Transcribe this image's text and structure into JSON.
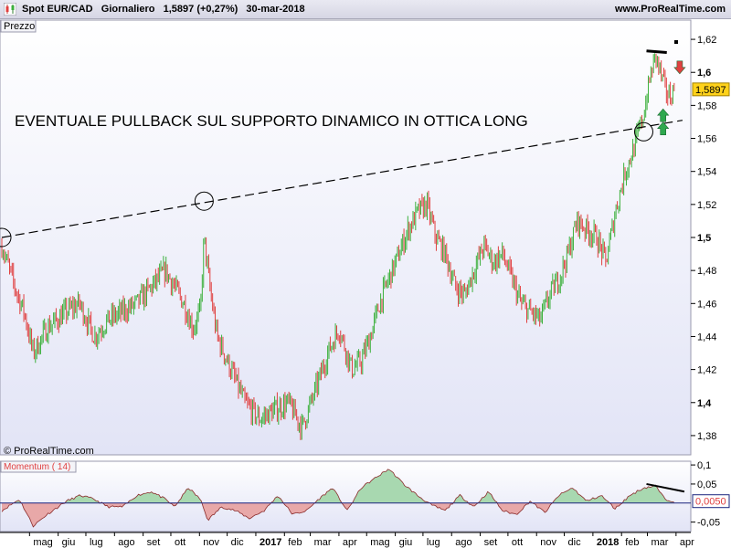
{
  "header": {
    "title": "Spot EUR/CAD   Giornaliero   1,5897 (+0,27%)   30-mar-2018",
    "website": "www.ProRealTime.com"
  },
  "colors": {
    "up_candle": "#3cb03c",
    "down_candle": "#e04040",
    "momentum_fill_pos": "#a8d8b0",
    "momentum_fill_neg": "#e8a8a8",
    "zero_line": "#1a237e",
    "price_label_bg": "#ffd21a",
    "pane_bg_top": "#ffffff",
    "pane_bg_bottom": "#e2e4f6"
  },
  "chart_data": [
    {
      "type": "line",
      "panel": "price",
      "panel_label": "Prezzo",
      "watermark": "© ProRealTime.com",
      "annotation": "EVENTUALE PULLBACK SUL SUPPORTO DINAMICO IN OTTICA LONG",
      "y_ticks": [
        "1,62",
        "1,6",
        "1,58",
        "1,56",
        "1,54",
        "1,52",
        "1,5",
        "1,48",
        "1,46",
        "1,44",
        "1,42",
        "1,4",
        "1,38"
      ],
      "y_tick_values": [
        1.62,
        1.6,
        1.58,
        1.56,
        1.54,
        1.52,
        1.5,
        1.48,
        1.46,
        1.44,
        1.42,
        1.4,
        1.38
      ],
      "bold_ticks": [
        "1,6",
        "1,5",
        "1,4"
      ],
      "ylim": [
        1.37,
        1.63
      ],
      "last_price_label": "1,5897",
      "last_price": 1.5897,
      "x_ticks": [
        "mag",
        "giu",
        "lug",
        "ago",
        "set",
        "ott",
        "nov",
        "dic",
        "2017",
        "feb",
        "mar",
        "apr",
        "mag",
        "giu",
        "lug",
        "ago",
        "set",
        "ott",
        "nov",
        "dic",
        "2018",
        "feb",
        "mar",
        "apr"
      ],
      "bold_x_ticks": [
        "2017",
        "2018"
      ],
      "x_range": [
        "2016-04-01",
        "2018-04-15"
      ],
      "series": [
        {
          "x": [
            "2016-04-01",
            "2016-04-15",
            "2016-04-25",
            "2016-05-05",
            "2016-05-20",
            "2016-06-10",
            "2016-06-24",
            "2016-07-10",
            "2016-07-25",
            "2016-08-10",
            "2016-08-25",
            "2016-09-10",
            "2016-09-25",
            "2016-10-05",
            "2016-10-15",
            "2016-10-25",
            "2016-11-02",
            "2016-11-06",
            "2016-11-12",
            "2016-11-20",
            "2016-12-05",
            "2016-12-20",
            "2017-01-05",
            "2017-01-20",
            "2017-02-05",
            "2017-02-20",
            "2017-03-05",
            "2017-03-20",
            "2017-04-01",
            "2017-04-15",
            "2017-04-25",
            "2017-05-05",
            "2017-05-15",
            "2017-05-25",
            "2017-06-05",
            "2017-06-15",
            "2017-06-25",
            "2017-07-05",
            "2017-07-15",
            "2017-07-25",
            "2017-08-05",
            "2017-08-15",
            "2017-08-25",
            "2017-09-05",
            "2017-09-15",
            "2017-09-25",
            "2017-10-05",
            "2017-10-15",
            "2017-10-25",
            "2017-11-05",
            "2017-11-15",
            "2017-11-25",
            "2017-12-05",
            "2017-12-15",
            "2017-12-25",
            "2018-01-05",
            "2018-01-15",
            "2018-01-25",
            "2018-02-05",
            "2018-02-15",
            "2018-02-25",
            "2018-03-05",
            "2018-03-10",
            "2018-03-15",
            "2018-03-20",
            "2018-03-25",
            "2018-03-30"
          ],
          "y": [
            1.495,
            1.47,
            1.455,
            1.43,
            1.445,
            1.455,
            1.46,
            1.44,
            1.45,
            1.455,
            1.46,
            1.47,
            1.48,
            1.47,
            1.46,
            1.445,
            1.455,
            1.5,
            1.47,
            1.44,
            1.42,
            1.4,
            1.39,
            1.395,
            1.4,
            1.385,
            1.405,
            1.43,
            1.445,
            1.42,
            1.425,
            1.44,
            1.46,
            1.475,
            1.49,
            1.505,
            1.515,
            1.52,
            1.5,
            1.49,
            1.47,
            1.465,
            1.48,
            1.495,
            1.485,
            1.49,
            1.475,
            1.46,
            1.455,
            1.45,
            1.465,
            1.475,
            1.49,
            1.51,
            1.505,
            1.5,
            1.485,
            1.515,
            1.54,
            1.555,
            1.575,
            1.6,
            1.61,
            1.6,
            1.59,
            1.585,
            1.5897
          ]
        }
      ],
      "trendline": {
        "x": [
          "2016-04-01",
          "2018-04-08"
        ],
        "y": [
          1.5,
          1.571
        ]
      },
      "resistance_line": {
        "x": [
          "2018-02-28",
          "2018-03-22"
        ],
        "y": [
          1.613,
          1.612
        ]
      },
      "circled_points": [
        {
          "x": "2016-04-01",
          "y": 1.5
        },
        {
          "x": "2016-11-06",
          "y": 1.522
        },
        {
          "x": "2018-02-25",
          "y": 1.564
        }
      ],
      "arrows": [
        {
          "direction": "down",
          "x": "2018-04-05",
          "y": 1.603
        },
        {
          "direction": "up",
          "x": "2018-03-18",
          "y": 1.574
        },
        {
          "direction": "up",
          "x": "2018-03-18",
          "y": 1.566
        }
      ]
    },
    {
      "type": "area",
      "panel": "momentum",
      "title": "Momentum ( 14)",
      "y_ticks": [
        "0,1",
        "0,05",
        "-0,05"
      ],
      "y_tick_values": [
        0.1,
        0.05,
        -0.05
      ],
      "ylim": [
        -0.07,
        0.105
      ],
      "last_value_label": "0,0050",
      "last_value": 0.005,
      "series": [
        {
          "x": [
            "2016-04-01",
            "2016-04-20",
            "2016-05-05",
            "2016-05-20",
            "2016-06-10",
            "2016-06-25",
            "2016-07-10",
            "2016-07-25",
            "2016-08-10",
            "2016-08-25",
            "2016-09-10",
            "2016-09-25",
            "2016-10-05",
            "2016-10-20",
            "2016-11-02",
            "2016-11-10",
            "2016-11-25",
            "2016-12-10",
            "2016-12-25",
            "2017-01-10",
            "2017-01-25",
            "2017-02-10",
            "2017-02-25",
            "2017-03-10",
            "2017-03-25",
            "2017-04-10",
            "2017-04-25",
            "2017-05-10",
            "2017-05-25",
            "2017-06-10",
            "2017-06-25",
            "2017-07-10",
            "2017-07-25",
            "2017-08-10",
            "2017-08-25",
            "2017-09-10",
            "2017-09-25",
            "2017-10-10",
            "2017-10-25",
            "2017-11-10",
            "2017-11-25",
            "2017-12-10",
            "2017-12-25",
            "2018-01-10",
            "2018-01-25",
            "2018-02-10",
            "2018-02-25",
            "2018-03-10",
            "2018-03-20",
            "2018-03-30"
          ],
          "y": [
            -0.02,
            0.01,
            -0.06,
            -0.03,
            0.005,
            0.02,
            0.01,
            -0.01,
            -0.01,
            0.02,
            0.03,
            0.01,
            -0.01,
            0.04,
            0.01,
            -0.045,
            -0.01,
            -0.02,
            -0.04,
            -0.02,
            0.02,
            -0.03,
            -0.02,
            0.01,
            0.04,
            -0.02,
            0.04,
            0.065,
            0.09,
            0.05,
            0.02,
            -0.005,
            -0.02,
            0.02,
            -0.01,
            0.03,
            -0.02,
            -0.03,
            0.005,
            -0.025,
            0.02,
            0.04,
            0.005,
            0.02,
            -0.015,
            0.02,
            0.04,
            0.045,
            0.01,
            0.005
          ]
        }
      ],
      "trendline": {
        "x": [
          "2018-02-28",
          "2018-04-10"
        ],
        "y": [
          0.05,
          0.03
        ]
      }
    }
  ]
}
